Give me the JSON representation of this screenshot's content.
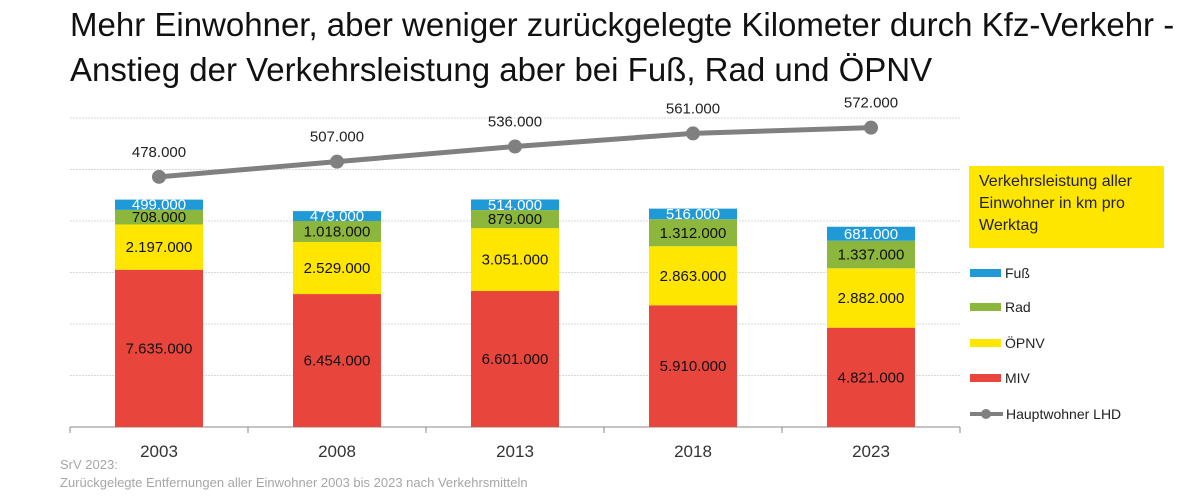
{
  "title": "Mehr Einwohner, aber weniger zurückgelegte Kilometer durch Kfz-Verkehr - Anstieg der Verkehrsleistung aber bei Fuß, Rad und ÖPNV",
  "footnote": {
    "line1": "SrV 2023:",
    "line2": "Zurückgelegte Entfernungen aller Einwohner 2003 bis 2023 nach Verkehrsmitteln"
  },
  "chart_data": {
    "type": "bar",
    "stacked": true,
    "title": "Mehr Einwohner, aber weniger zurückgelegte Kilometer durch Kfz-Verkehr - Anstieg der Verkehrsleistung aber bei Fuß, Rad und ÖPNV",
    "legend_title": "Verkehrsleistung aller Einwohner in km pro Werktag",
    "legend_placement": "right",
    "grid": true,
    "categories": [
      "2003",
      "2008",
      "2013",
      "2018",
      "2023"
    ],
    "ylim": [
      0,
      15000000
    ],
    "y2lim": [
      0,
      600000
    ],
    "series": [
      {
        "name": "MIV",
        "color": "#e8453c",
        "values": [
          7635000,
          6454000,
          6601000,
          5910000,
          4821000
        ],
        "labels": [
          "7.635.000",
          "6.454.000",
          "6.601.000",
          "5.910.000",
          "4.821.000"
        ],
        "label_color": "#111111"
      },
      {
        "name": "ÖPNV",
        "color": "#ffe600",
        "values": [
          2197000,
          2529000,
          3051000,
          2863000,
          2882000
        ],
        "labels": [
          "2.197.000",
          "2.529.000",
          "3.051.000",
          "2.863.000",
          "2.882.000"
        ],
        "label_color": "#111111"
      },
      {
        "name": "Rad",
        "color": "#8db63c",
        "values": [
          708000,
          1018000,
          879000,
          1312000,
          1337000
        ],
        "labels": [
          "708.000",
          "1.018.000",
          "879.000",
          "1.312.000",
          "1.337.000"
        ],
        "label_color": "#111111"
      },
      {
        "name": "Fuß",
        "color": "#1f9ad6",
        "values": [
          499000,
          479000,
          514000,
          516000,
          681000
        ],
        "labels": [
          "499.000",
          "479.000",
          "514.000",
          "516.000",
          "681.000"
        ],
        "label_color": "#ffffff"
      }
    ],
    "line_series": {
      "name": "Hauptwohner LHD",
      "color": "#808080",
      "axis": "secondary",
      "values": [
        478000,
        507000,
        536000,
        561000,
        572000
      ],
      "labels": [
        "478.000",
        "507.000",
        "536.000",
        "561.000",
        "572.000"
      ]
    }
  }
}
